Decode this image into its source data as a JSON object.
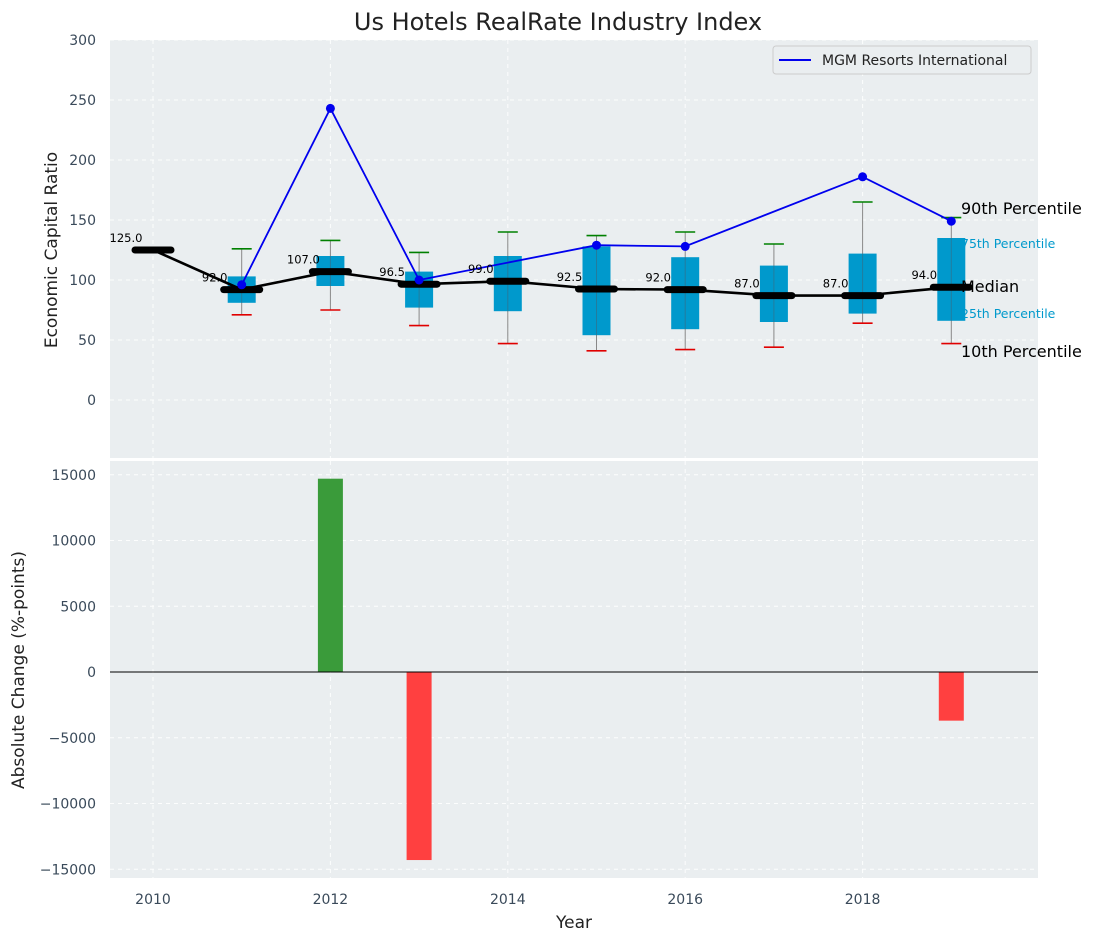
{
  "chart_data": [
    {
      "type": "box+line",
      "title": "Us Hotels RealRate Industry Index",
      "xlabel": "",
      "ylabel": "Economic Capital Ratio",
      "ylim": [
        -45,
        300
      ],
      "yticks": [
        0,
        50,
        100,
        150,
        200,
        250,
        300
      ],
      "years": [
        2010,
        2011,
        2012,
        2013,
        2014,
        2015,
        2016,
        2017,
        2018,
        2019
      ],
      "median": [
        125.0,
        92.0,
        107.0,
        96.5,
        99.0,
        92.5,
        92.0,
        87.0,
        87.0,
        94.0
      ],
      "median_labels": [
        "125.0",
        "92.0",
        "107.0",
        "96.5",
        "99.0",
        "92.5",
        "92.0",
        "87.0",
        "87.0",
        "94.0"
      ],
      "p10": [
        null,
        71,
        75,
        62,
        47,
        41,
        42,
        44,
        64,
        47
      ],
      "p25": [
        null,
        81,
        95,
        77,
        74,
        54,
        59,
        65,
        72,
        66
      ],
      "p75": [
        null,
        103,
        120,
        107,
        120,
        128,
        119,
        112,
        122,
        135
      ],
      "p90": [
        null,
        126,
        133,
        123,
        140,
        137,
        140,
        130,
        165,
        152
      ],
      "series": [
        {
          "name": "MGM Resorts International",
          "years": [
            2011,
            2012,
            2013,
            2015,
            2016,
            2018,
            2019
          ],
          "values": [
            96,
            243,
            100,
            129,
            128,
            186,
            149
          ],
          "color": "#0000ee"
        }
      ],
      "annotations": {
        "p90": "90th Percentile",
        "p75": "75th Percentile",
        "median": "Median",
        "p25": "25th Percentile",
        "p10": "10th Percentile"
      },
      "legend": "top-right"
    },
    {
      "type": "bar",
      "xlabel": "Year",
      "ylabel": "Absolute Change (%-points)",
      "ylim": [
        -15600,
        16200
      ],
      "yticks": [
        -15000,
        -10000,
        -5000,
        0,
        5000,
        10000,
        15000
      ],
      "ytick_labels": [
        "−15000",
        "−10000",
        "−5000",
        "0",
        "5000",
        "10000",
        "15000"
      ],
      "xticks": [
        2010,
        2012,
        2014,
        2016,
        2018
      ],
      "bars": [
        {
          "year": 2012,
          "value": 14700,
          "color": "#3a9b3a"
        },
        {
          "year": 2013,
          "value": -14300,
          "color": "#ff4040"
        },
        {
          "year": 2019,
          "value": -3700,
          "color": "#ff4040"
        }
      ]
    }
  ]
}
